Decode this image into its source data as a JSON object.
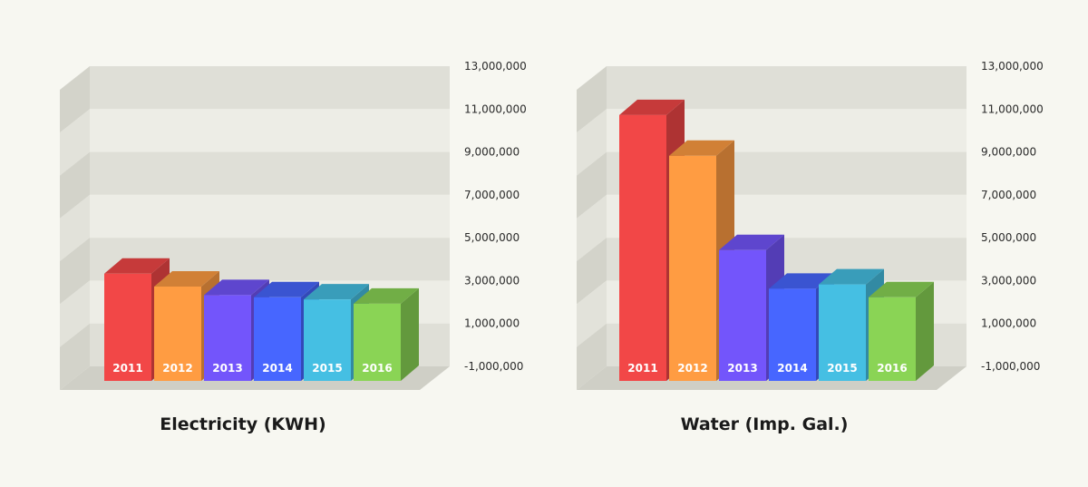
{
  "chart_data": [
    {
      "type": "bar",
      "title": "Electricity (KWH)",
      "categories": [
        "2011",
        "2012",
        "2013",
        "2014",
        "2015",
        "2016"
      ],
      "values": [
        4000000,
        3400000,
        3000000,
        2900000,
        2800000,
        2600000
      ],
      "ylim": [
        -1000000,
        13000000
      ],
      "yticks": [
        -1000000,
        1000000,
        3000000,
        5000000,
        7000000,
        9000000,
        11000000,
        13000000
      ],
      "ytick_labels": [
        "-1,000,000",
        "1,000,000",
        "3,000,000",
        "5,000,000",
        "7,000,000",
        "9,000,000",
        "11,000,000",
        "13,000,000"
      ],
      "grid": true,
      "colors": [
        "#f24747",
        "#ff9c42",
        "#7355fb",
        "#4766ff",
        "#45bfe3",
        "#8ad455"
      ]
    },
    {
      "type": "bar",
      "title": "Water (Imp. Gal.)",
      "categories": [
        "2011",
        "2012",
        "2013",
        "2014",
        "2015",
        "2016"
      ],
      "values": [
        11400000,
        9500000,
        5100000,
        3300000,
        3500000,
        2900000
      ],
      "ylim": [
        -1000000,
        13000000
      ],
      "yticks": [
        -1000000,
        1000000,
        3000000,
        5000000,
        7000000,
        9000000,
        11000000,
        13000000
      ],
      "ytick_labels": [
        "-1,000,000",
        "1,000,000",
        "3,000,000",
        "5,000,000",
        "7,000,000",
        "9,000,000",
        "11,000,000",
        "13,000,000"
      ],
      "grid": true,
      "colors": [
        "#f24747",
        "#ff9c42",
        "#7355fb",
        "#4766ff",
        "#45bfe3",
        "#8ad455"
      ]
    }
  ]
}
